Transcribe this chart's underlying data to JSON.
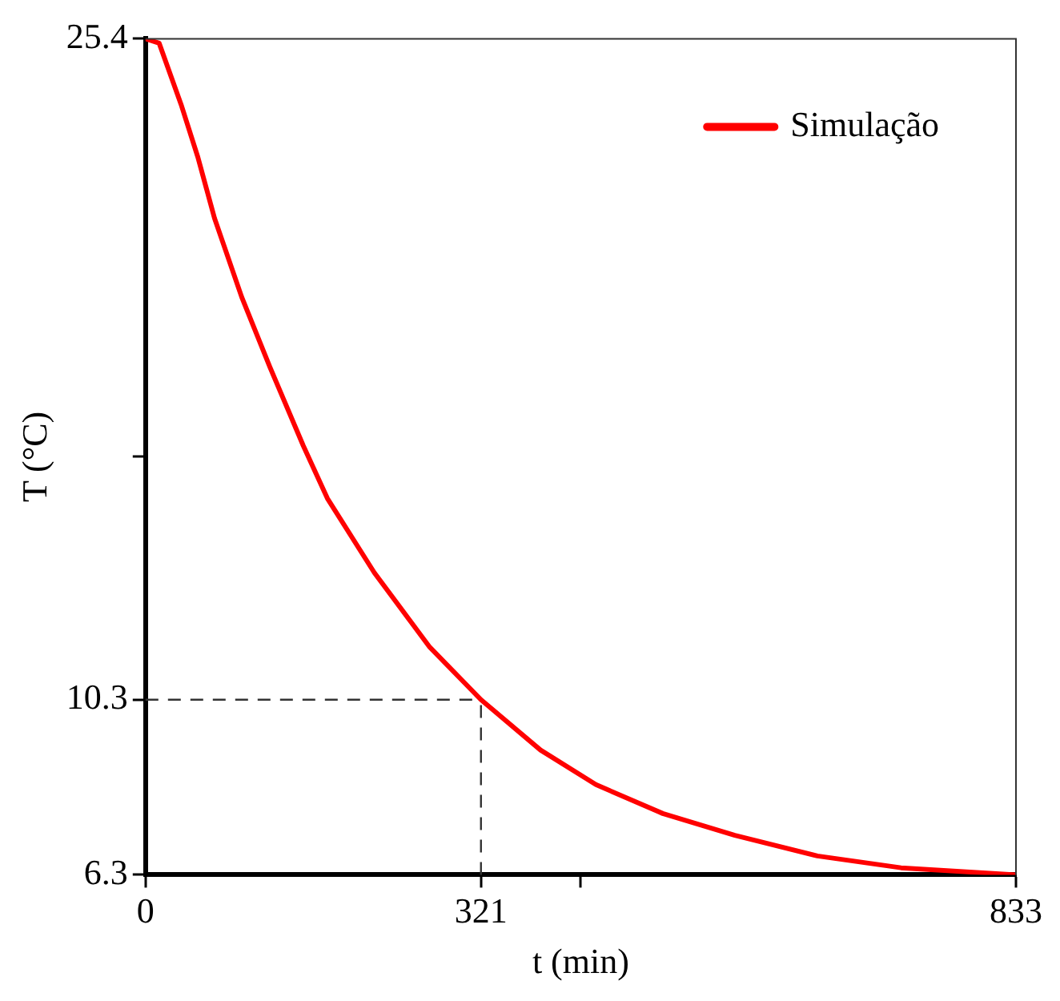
{
  "chart_data": {
    "type": "line",
    "xlabel": "t (min)",
    "ylabel": "T (°C)",
    "x": [
      0,
      13,
      34,
      50,
      66,
      92,
      119,
      151,
      174,
      219,
      272,
      321,
      378,
      431,
      495,
      564,
      643,
      723,
      833
    ],
    "series": [
      {
        "name": "Simulação",
        "color": "#ff0000",
        "values": [
          25.4,
          25.3,
          23.9,
          22.7,
          21.3,
          19.5,
          17.9,
          16.1,
          14.9,
          13.2,
          11.5,
          10.3,
          9.15,
          8.36,
          7.7,
          7.2,
          6.73,
          6.46,
          6.3
        ]
      }
    ],
    "xlim": [
      0,
      833
    ],
    "ylim": [
      6.3,
      25.4
    ],
    "xticks": [
      0,
      321,
      {
        "value": 416.5,
        "label": null
      },
      833
    ],
    "yticks": [
      6.3,
      10.3,
      {
        "value": 15.85,
        "label": null
      },
      25.4
    ],
    "ref_lines": [
      {
        "axis": "y",
        "value": 10.3,
        "line_style": "dashed"
      },
      {
        "axis": "x",
        "value": 321,
        "line_style": "dashed"
      }
    ],
    "grid": false,
    "legend": "top right",
    "marker": "none",
    "line_style": "solid"
  }
}
